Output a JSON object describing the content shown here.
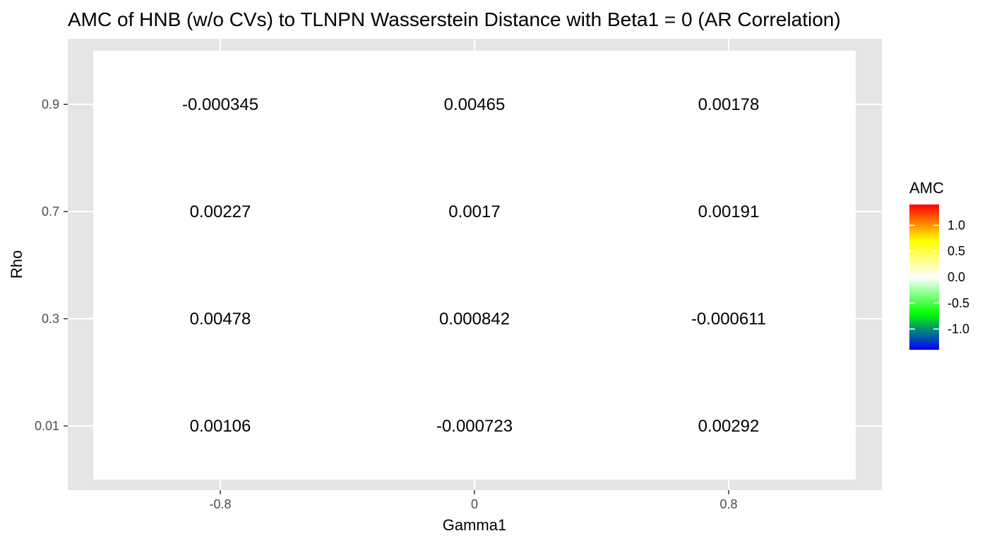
{
  "chart_data": {
    "type": "heatmap",
    "title": "AMC of HNB (w/o CVs) to TLNPN Wasserstein Distance with Beta1 = 0 (AR Correlation)",
    "xlabel": "Gamma1",
    "ylabel": "Rho",
    "x_categories": [
      "-0.8",
      "0",
      "0.8"
    ],
    "y_categories": [
      "0.01",
      "0.3",
      "0.7",
      "0.9"
    ],
    "cells": [
      {
        "x": "-0.8",
        "y": "0.9",
        "value": -0.000345,
        "label": "-0.000345"
      },
      {
        "x": "0",
        "y": "0.9",
        "value": 0.00465,
        "label": "0.00465"
      },
      {
        "x": "0.8",
        "y": "0.9",
        "value": 0.00178,
        "label": "0.00178"
      },
      {
        "x": "-0.8",
        "y": "0.7",
        "value": 0.00227,
        "label": "0.00227"
      },
      {
        "x": "0",
        "y": "0.7",
        "value": 0.0017,
        "label": "0.0017"
      },
      {
        "x": "0.8",
        "y": "0.7",
        "value": 0.00191,
        "label": "0.00191"
      },
      {
        "x": "-0.8",
        "y": "0.3",
        "value": 0.00478,
        "label": "0.00478"
      },
      {
        "x": "0",
        "y": "0.3",
        "value": 0.000842,
        "label": "0.000842"
      },
      {
        "x": "0.8",
        "y": "0.3",
        "value": -0.000611,
        "label": "-0.000611"
      },
      {
        "x": "-0.8",
        "y": "0.01",
        "value": 0.00106,
        "label": "0.00106"
      },
      {
        "x": "0",
        "y": "0.01",
        "value": -0.000723,
        "label": "-0.000723"
      },
      {
        "x": "0.8",
        "y": "0.01",
        "value": 0.00292,
        "label": "0.00292"
      }
    ],
    "legend": {
      "title": "AMC",
      "placement": "right",
      "range": [
        -1.4,
        1.4
      ],
      "ticks": [
        {
          "value": 1.0,
          "label": "1.0"
        },
        {
          "value": 0.5,
          "label": "0.5"
        },
        {
          "value": 0.0,
          "label": "0.0"
        },
        {
          "value": -0.5,
          "label": "-0.5"
        },
        {
          "value": -1.0,
          "label": "-1.0"
        }
      ],
      "color_stops": [
        {
          "value": -1.4,
          "color": "#0000ff"
        },
        {
          "value": -0.7,
          "color": "#00ff00"
        },
        {
          "value": 0.0,
          "color": "#ffffff"
        },
        {
          "value": 0.7,
          "color": "#ffff00"
        },
        {
          "value": 1.4,
          "color": "#ff0000"
        }
      ]
    },
    "panel_background": "#e5e5e5",
    "grid_color": "#ffffff",
    "grid": true
  }
}
